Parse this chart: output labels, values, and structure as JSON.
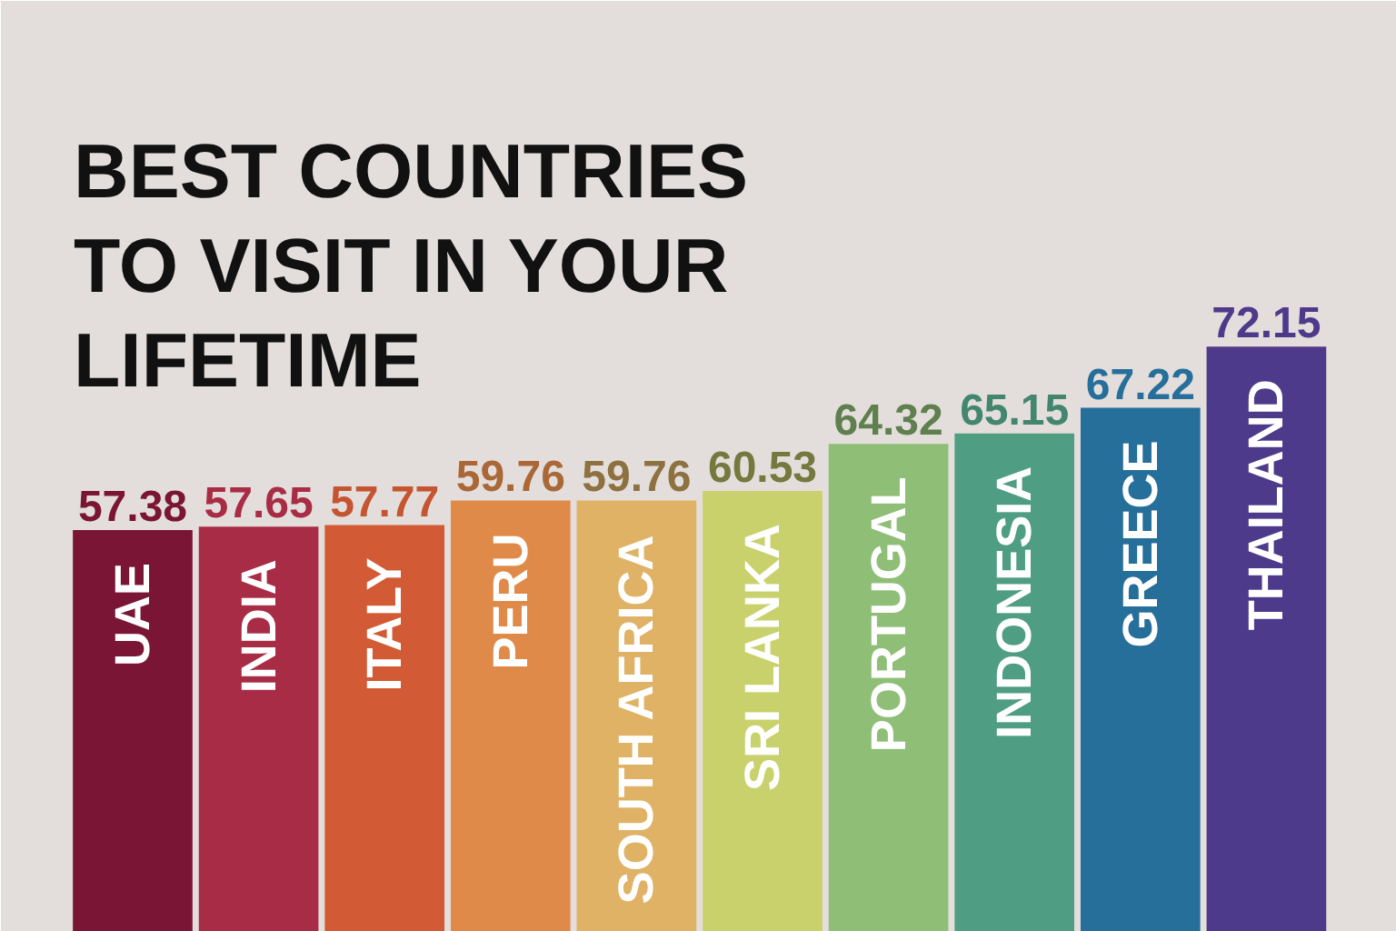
{
  "chart_data": {
    "type": "bar",
    "title": "BEST COUNTRIES TO VISIT IN YOUR LIFETIME",
    "categories": [
      "UAE",
      "INDIA",
      "ITALY",
      "PERU",
      "SOUTH AFRICA",
      "SRI LANKA",
      "PORTUGAL",
      "INDONESIA",
      "GREECE",
      "THAILAND"
    ],
    "values": [
      57.38,
      57.65,
      57.77,
      59.76,
      59.76,
      60.53,
      64.32,
      65.15,
      67.22,
      72.15
    ],
    "colors": [
      "#7a1535",
      "#a82c45",
      "#d25a34",
      "#e08a4a",
      "#dfb265",
      "#c9d16c",
      "#8fbe77",
      "#4f9e84",
      "#266f9a",
      "#4e3a8a"
    ],
    "ylim": [
      25,
      100
    ],
    "data_labels": true
  }
}
